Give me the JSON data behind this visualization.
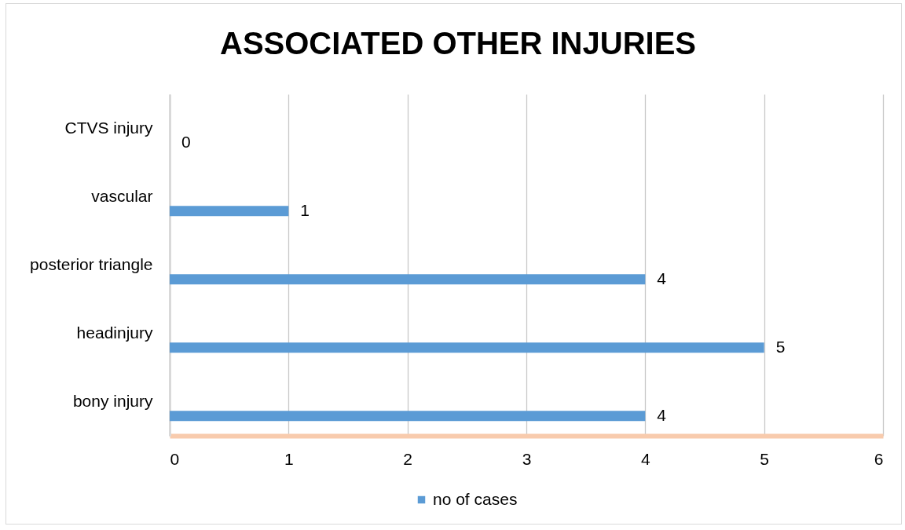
{
  "chart_data": {
    "type": "bar",
    "orientation": "horizontal",
    "title": "ASSOCIATED OTHER INJURIES",
    "categories": [
      "CTVS injury",
      "vascular",
      "posterior triangle",
      "headinjury",
      "bony injury"
    ],
    "series": [
      {
        "name": "no of cases",
        "color": "#5b9bd5",
        "values": [
          0,
          1,
          4,
          5,
          4
        ]
      }
    ],
    "xlim": [
      0,
      6
    ],
    "xticks": [
      0,
      1,
      2,
      3,
      4,
      5,
      6
    ],
    "grid": "x",
    "legend": "bottom",
    "data_labels": true
  }
}
